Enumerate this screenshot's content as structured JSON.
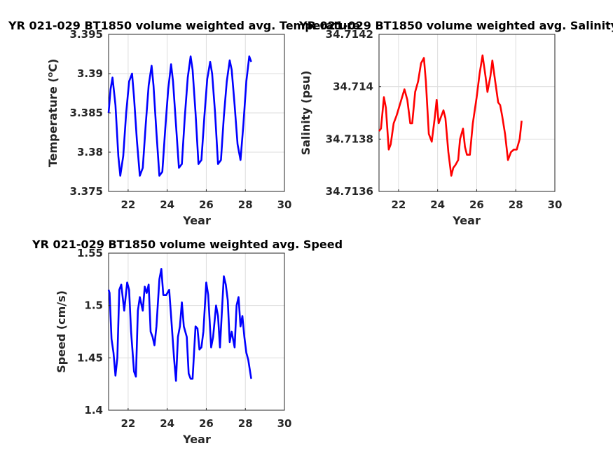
{
  "chart_data": [
    {
      "type": "line",
      "title": "YR 021-029 BT1850 volume weighted avg. Temperature",
      "xlabel": "Year",
      "ylabel": "Temperature (°C)",
      "xlim": [
        21,
        30
      ],
      "ylim": [
        3.375,
        3.395
      ],
      "xticks": [
        "22",
        "24",
        "26",
        "28",
        "30"
      ],
      "yticks": [
        "3.375",
        "3.38",
        "3.385",
        "3.39",
        "3.395"
      ],
      "grid": true,
      "color": "#0000ff",
      "series": [
        {
          "x": [
            21.0,
            21.1,
            21.2,
            21.35,
            21.5,
            21.6,
            21.75,
            21.9,
            22.05,
            22.2,
            22.3,
            22.45,
            22.6,
            22.75,
            22.9,
            23.05,
            23.2,
            23.3,
            23.45,
            23.6,
            23.75,
            23.9,
            24.05,
            24.2,
            24.3,
            24.45,
            24.6,
            24.75,
            24.9,
            25.05,
            25.2,
            25.3,
            25.45,
            25.6,
            25.75,
            25.9,
            26.05,
            26.2,
            26.3,
            26.45,
            26.6,
            26.75,
            26.9,
            27.05,
            27.2,
            27.3,
            27.45,
            27.6,
            27.75,
            27.9,
            28.05,
            28.2,
            28.3
          ],
          "y": [
            3.385,
            3.388,
            3.3895,
            3.386,
            3.3795,
            3.377,
            3.3795,
            3.385,
            3.389,
            3.39,
            3.387,
            3.3815,
            3.377,
            3.378,
            3.3835,
            3.3885,
            3.391,
            3.3885,
            3.3825,
            3.377,
            3.3775,
            3.383,
            3.388,
            3.3912,
            3.389,
            3.3835,
            3.378,
            3.3785,
            3.3845,
            3.3895,
            3.3922,
            3.3905,
            3.385,
            3.3785,
            3.379,
            3.3845,
            3.3893,
            3.3915,
            3.39,
            3.385,
            3.3785,
            3.379,
            3.3845,
            3.389,
            3.3917,
            3.3905,
            3.386,
            3.381,
            3.379,
            3.3835,
            3.389,
            3.3922,
            3.3915
          ]
        }
      ]
    },
    {
      "type": "line",
      "title": "YR 021-029 BT1850 volume weighted avg. Salinity",
      "xlabel": "Year",
      "ylabel": "Salinity (psu)",
      "xlim": [
        21,
        30
      ],
      "ylim": [
        34.7136,
        34.7142
      ],
      "xticks": [
        "22",
        "24",
        "26",
        "28",
        "30"
      ],
      "yticks": [
        "34.7136",
        "34.7138",
        "34.714",
        "34.7142"
      ],
      "grid": true,
      "color": "#ff0000",
      "series": [
        {
          "x": [
            21.0,
            21.1,
            21.25,
            21.35,
            21.5,
            21.6,
            21.75,
            21.9,
            22.1,
            22.3,
            22.45,
            22.6,
            22.7,
            22.85,
            23.0,
            23.15,
            23.3,
            23.4,
            23.55,
            23.7,
            23.85,
            23.95,
            24.05,
            24.2,
            24.3,
            24.4,
            24.55,
            24.7,
            24.8,
            24.9,
            25.05,
            25.15,
            25.3,
            25.4,
            25.5,
            25.65,
            25.8,
            26.0,
            26.15,
            26.3,
            26.45,
            26.55,
            26.7,
            26.8,
            26.95,
            27.1,
            27.2,
            27.3,
            27.45,
            27.6,
            27.75,
            27.9,
            28.05,
            28.2,
            28.3
          ],
          "y": [
            34.71383,
            34.71384,
            34.71396,
            34.71392,
            34.71376,
            34.71378,
            34.71386,
            34.71389,
            34.71394,
            34.71399,
            34.71395,
            34.71386,
            34.71386,
            34.71398,
            34.71402,
            34.71409,
            34.71411,
            34.71402,
            34.71382,
            34.71379,
            34.71388,
            34.71395,
            34.71386,
            34.71389,
            34.71391,
            34.71388,
            34.71375,
            34.71366,
            34.71369,
            34.7137,
            34.71372,
            34.7138,
            34.71384,
            34.71377,
            34.71374,
            34.71374,
            34.71386,
            34.71396,
            34.71405,
            34.71412,
            34.71404,
            34.71398,
            34.71404,
            34.7141,
            34.71402,
            34.71394,
            34.71393,
            34.71389,
            34.71382,
            34.71372,
            34.71375,
            34.71376,
            34.71376,
            34.7138,
            34.71387
          ]
        }
      ]
    },
    {
      "type": "line",
      "title": "YR 021-029 BT1850 volume weighted avg. Speed",
      "xlabel": "Year",
      "ylabel": "Speed (cm/s)",
      "xlim": [
        21,
        30
      ],
      "ylim": [
        1.4,
        1.55
      ],
      "xticks": [
        "22",
        "24",
        "26",
        "28",
        "30"
      ],
      "yticks": [
        "1.4",
        "1.45",
        "1.5",
        "1.55"
      ],
      "grid": true,
      "color": "#0000ff",
      "series": [
        {
          "x": [
            21.0,
            21.05,
            21.15,
            21.25,
            21.35,
            21.45,
            21.55,
            21.65,
            21.8,
            21.95,
            22.05,
            22.15,
            22.3,
            22.4,
            22.5,
            22.6,
            22.75,
            22.85,
            22.95,
            23.05,
            23.15,
            23.25,
            23.35,
            23.45,
            23.6,
            23.7,
            23.8,
            23.95,
            24.1,
            24.2,
            24.35,
            24.45,
            24.55,
            24.65,
            24.75,
            24.85,
            25.0,
            25.1,
            25.2,
            25.3,
            25.45,
            25.55,
            25.65,
            25.75,
            25.85,
            26.0,
            26.1,
            26.25,
            26.35,
            26.5,
            26.6,
            26.7,
            26.8,
            26.9,
            27.0,
            27.1,
            27.2,
            27.3,
            27.45,
            27.55,
            27.65,
            27.75,
            27.85,
            27.95,
            28.05,
            28.15,
            28.3
          ],
          "y": [
            1.515,
            1.512,
            1.468,
            1.455,
            1.433,
            1.45,
            1.515,
            1.52,
            1.495,
            1.522,
            1.515,
            1.475,
            1.437,
            1.432,
            1.495,
            1.508,
            1.495,
            1.518,
            1.512,
            1.52,
            1.475,
            1.47,
            1.462,
            1.48,
            1.525,
            1.535,
            1.51,
            1.51,
            1.515,
            1.49,
            1.45,
            1.428,
            1.47,
            1.48,
            1.503,
            1.48,
            1.47,
            1.435,
            1.43,
            1.43,
            1.48,
            1.478,
            1.458,
            1.46,
            1.475,
            1.522,
            1.51,
            1.46,
            1.47,
            1.5,
            1.49,
            1.46,
            1.495,
            1.528,
            1.52,
            1.505,
            1.465,
            1.475,
            1.46,
            1.5,
            1.508,
            1.48,
            1.49,
            1.47,
            1.455,
            1.448,
            1.43
          ]
        }
      ]
    }
  ]
}
